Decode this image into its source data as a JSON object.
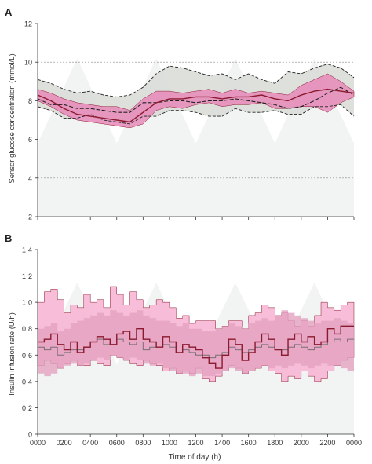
{
  "chart_data": [
    {
      "panel_label": "A",
      "type": "line",
      "ylabel": "Sensor glucose concentration (mmol/L)",
      "xlabel": "",
      "ylim": [
        2,
        12
      ],
      "yticks": [
        2,
        4,
        6,
        8,
        10,
        12
      ],
      "reference_lines": [
        4,
        10
      ],
      "x": [
        0,
        1,
        2,
        3,
        4,
        5,
        6,
        7,
        8,
        9,
        10,
        11,
        12,
        13,
        14,
        15,
        16,
        17,
        18,
        19,
        20,
        21,
        22,
        23,
        24
      ],
      "series": [
        {
          "role": "median_a",
          "values": [
            8.3,
            8.0,
            7.6,
            7.3,
            7.2,
            7.1,
            7.0,
            6.9,
            7.4,
            7.9,
            8.1,
            8.1,
            8.2,
            8.2,
            8.1,
            8.2,
            8.2,
            8.3,
            8.1,
            8.0,
            8.3,
            8.5,
            8.6,
            8.5,
            8.4
          ]
        },
        {
          "role": "iqr_a_upper",
          "values": [
            8.6,
            8.4,
            8.1,
            7.9,
            7.8,
            7.7,
            7.7,
            7.5,
            8.1,
            8.5,
            8.5,
            8.4,
            8.5,
            8.6,
            8.4,
            8.6,
            8.4,
            8.5,
            8.4,
            8.3,
            8.8,
            9.1,
            9.4,
            9.0,
            8.5
          ]
        },
        {
          "role": "iqr_a_lower",
          "values": [
            8.0,
            7.7,
            7.3,
            7.0,
            6.9,
            6.8,
            6.7,
            6.6,
            6.8,
            7.5,
            7.7,
            7.6,
            7.8,
            7.9,
            7.7,
            7.8,
            7.8,
            7.9,
            7.6,
            7.6,
            7.7,
            7.7,
            7.4,
            7.9,
            8.2
          ]
        },
        {
          "role": "median_b",
          "values": [
            8.1,
            7.8,
            7.8,
            7.6,
            7.6,
            7.5,
            7.4,
            7.4,
            7.9,
            7.9,
            8.0,
            8.0,
            7.9,
            8.0,
            8.0,
            8.1,
            8.0,
            7.9,
            7.8,
            7.6,
            7.7,
            8.0,
            8.4,
            8.7,
            8.3
          ]
        },
        {
          "role": "iqr_b_upper",
          "values": [
            9.1,
            8.9,
            8.6,
            8.4,
            8.5,
            8.3,
            8.2,
            8.3,
            8.7,
            9.4,
            9.8,
            9.7,
            9.5,
            9.3,
            9.4,
            9.1,
            9.4,
            9.1,
            8.9,
            9.5,
            9.4,
            9.7,
            9.9,
            9.7,
            9.2
          ]
        },
        {
          "role": "iqr_b_lower",
          "values": [
            7.7,
            7.5,
            7.1,
            7.1,
            7.3,
            7.0,
            6.9,
            6.8,
            7.2,
            7.2,
            7.5,
            7.5,
            7.4,
            7.2,
            7.2,
            7.6,
            7.4,
            7.4,
            7.5,
            7.3,
            7.3,
            7.7,
            7.7,
            7.8,
            7.2
          ]
        }
      ]
    },
    {
      "panel_label": "B",
      "type": "line",
      "ylabel": "Insulin infusion rate (U/h)",
      "xlabel": "Time of day (h)",
      "ylim": [
        0,
        1.4
      ],
      "yticks": [
        "0",
        "0·2",
        "0·4",
        "0·6",
        "0·8",
        "1·0",
        "1·2",
        "1·4"
      ],
      "x": [
        0,
        0.5,
        1,
        1.5,
        2,
        2.5,
        3,
        3.5,
        4,
        4.5,
        5,
        5.5,
        6,
        6.5,
        7,
        7.5,
        8,
        8.5,
        9,
        9.5,
        10,
        10.5,
        11,
        11.5,
        12,
        12.5,
        13,
        13.5,
        14,
        14.5,
        15,
        15.5,
        16,
        16.5,
        17,
        17.5,
        18,
        18.5,
        19,
        19.5,
        20,
        20.5,
        21,
        21.5,
        22,
        22.5,
        23,
        23.5,
        24
      ],
      "series": [
        {
          "role": "median_a",
          "values": [
            0.7,
            0.72,
            0.76,
            0.68,
            0.64,
            0.7,
            0.62,
            0.66,
            0.7,
            0.74,
            0.72,
            0.68,
            0.76,
            0.78,
            0.72,
            0.8,
            0.72,
            0.7,
            0.66,
            0.74,
            0.7,
            0.62,
            0.68,
            0.66,
            0.64,
            0.58,
            0.54,
            0.5,
            0.6,
            0.72,
            0.68,
            0.56,
            0.62,
            0.7,
            0.76,
            0.72,
            0.64,
            0.6,
            0.72,
            0.76,
            0.7,
            0.74,
            0.68,
            0.7,
            0.8,
            0.76,
            0.82,
            0.82,
            0.8
          ]
        },
        {
          "role": "iqr_a_upper",
          "values": [
            1.0,
            1.08,
            1.1,
            1.02,
            0.92,
            0.98,
            0.96,
            1.06,
            1.0,
            1.02,
            0.96,
            1.12,
            1.06,
            0.98,
            1.08,
            1.02,
            0.96,
            0.98,
            1.02,
            1.0,
            0.96,
            0.88,
            0.9,
            0.84,
            0.86,
            0.86,
            0.86,
            0.8,
            0.82,
            0.86,
            0.86,
            0.8,
            0.9,
            0.92,
            0.98,
            0.96,
            0.9,
            0.92,
            0.86,
            0.82,
            0.86,
            0.82,
            0.9,
            1.0,
            0.96,
            0.94,
            0.98,
            1.0,
            0.98
          ]
        },
        {
          "role": "iqr_a_lower",
          "values": [
            0.52,
            0.56,
            0.54,
            0.5,
            0.54,
            0.56,
            0.52,
            0.52,
            0.56,
            0.54,
            0.52,
            0.6,
            0.58,
            0.56,
            0.54,
            0.52,
            0.56,
            0.54,
            0.52,
            0.48,
            0.5,
            0.46,
            0.48,
            0.46,
            0.5,
            0.42,
            0.4,
            0.44,
            0.48,
            0.52,
            0.5,
            0.46,
            0.48,
            0.5,
            0.52,
            0.48,
            0.46,
            0.4,
            0.44,
            0.42,
            0.48,
            0.44,
            0.4,
            0.42,
            0.48,
            0.52,
            0.56,
            0.58,
            0.56
          ]
        },
        {
          "role": "median_b",
          "values": [
            0.66,
            0.64,
            0.66,
            0.6,
            0.62,
            0.64,
            0.64,
            0.66,
            0.7,
            0.72,
            0.68,
            0.7,
            0.72,
            0.7,
            0.68,
            0.7,
            0.64,
            0.66,
            0.7,
            0.68,
            0.66,
            0.62,
            0.64,
            0.62,
            0.6,
            0.6,
            0.58,
            0.6,
            0.62,
            0.66,
            0.64,
            0.62,
            0.64,
            0.66,
            0.68,
            0.66,
            0.64,
            0.64,
            0.66,
            0.68,
            0.66,
            0.64,
            0.66,
            0.68,
            0.7,
            0.72,
            0.7,
            0.72,
            0.72
          ]
        },
        {
          "role": "iqr_b_upper",
          "values": [
            0.8,
            0.82,
            0.84,
            0.78,
            0.8,
            0.84,
            0.86,
            0.88,
            0.9,
            0.92,
            0.9,
            0.94,
            0.92,
            0.9,
            0.92,
            0.94,
            0.9,
            0.88,
            0.86,
            0.86,
            0.84,
            0.82,
            0.84,
            0.8,
            0.8,
            0.78,
            0.78,
            0.8,
            0.82,
            0.84,
            0.82,
            0.8,
            0.84,
            0.86,
            0.88,
            0.86,
            0.9,
            0.94,
            0.92,
            0.9,
            0.88,
            0.86,
            0.84,
            0.86,
            0.86,
            0.88,
            0.86,
            0.84,
            0.82
          ]
        },
        {
          "role": "iqr_b_lower",
          "values": [
            0.46,
            0.44,
            0.46,
            0.5,
            0.52,
            0.54,
            0.52,
            0.54,
            0.56,
            0.58,
            0.56,
            0.6,
            0.58,
            0.56,
            0.58,
            0.56,
            0.54,
            0.52,
            0.54,
            0.5,
            0.48,
            0.46,
            0.46,
            0.44,
            0.46,
            0.44,
            0.44,
            0.46,
            0.48,
            0.5,
            0.48,
            0.46,
            0.48,
            0.5,
            0.52,
            0.5,
            0.52,
            0.5,
            0.52,
            0.54,
            0.52,
            0.5,
            0.52,
            0.54,
            0.52,
            0.52,
            0.5,
            0.48,
            0.46
          ]
        }
      ]
    }
  ],
  "x_ticks": [
    "0000",
    "0200",
    "0400",
    "0600",
    "0800",
    "1000",
    "1200",
    "1400",
    "1600",
    "1800",
    "2000",
    "2200",
    "0000"
  ],
  "colors": {
    "pink_fill": "#e889b8",
    "pink_fill_light": "#f7b6d4",
    "grey_fill": "#d8dad6",
    "dark_red": "#8b1a2e",
    "dashed": "#222222",
    "axis": "#333333",
    "ref_line": "#888888",
    "watermark": "#f2f3f3"
  }
}
